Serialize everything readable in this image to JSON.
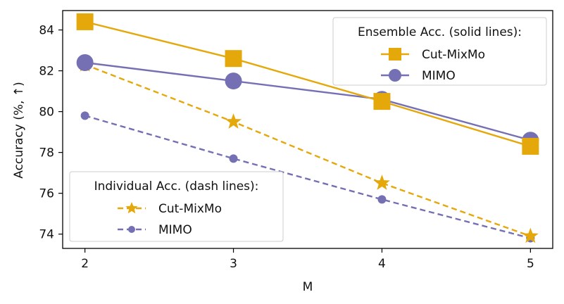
{
  "chart_data": {
    "type": "line",
    "title": "",
    "xlabel": "M",
    "ylabel": "Accuracy (%, ↑)",
    "x": [
      2,
      3,
      4,
      5
    ],
    "xlim": [
      1.85,
      5.15
    ],
    "ylim": [
      73.3,
      84.95
    ],
    "yticks": [
      74,
      76,
      78,
      80,
      82,
      84
    ],
    "grid": false,
    "series": [
      {
        "name": "Cut-MixMo",
        "group": "ensemble",
        "style": "solid",
        "marker": "square",
        "color": "#E5A80B",
        "values": [
          84.4,
          82.6,
          80.5,
          78.3
        ]
      },
      {
        "name": "MIMO",
        "group": "ensemble",
        "style": "solid",
        "marker": "circle",
        "color": "#7570B3",
        "values": [
          82.4,
          81.5,
          80.6,
          78.6
        ]
      },
      {
        "name": "Cut-MixMo",
        "group": "individual",
        "style": "dashed",
        "marker": "star",
        "color": "#E5A80B",
        "values": [
          82.3,
          79.5,
          76.5,
          73.9
        ]
      },
      {
        "name": "MIMO",
        "group": "individual",
        "style": "dashed",
        "marker": "small-circle",
        "color": "#7570B3",
        "values": [
          79.8,
          77.7,
          75.7,
          73.8
        ]
      }
    ],
    "legends": [
      {
        "title": "Ensemble Acc. (solid lines):",
        "placement": "top-right",
        "entries": [
          "Cut-MixMo",
          "MIMO"
        ]
      },
      {
        "title": "Individual Acc. (dash lines):",
        "placement": "bottom-left",
        "entries": [
          "Cut-MixMo",
          "MIMO"
        ]
      }
    ]
  }
}
